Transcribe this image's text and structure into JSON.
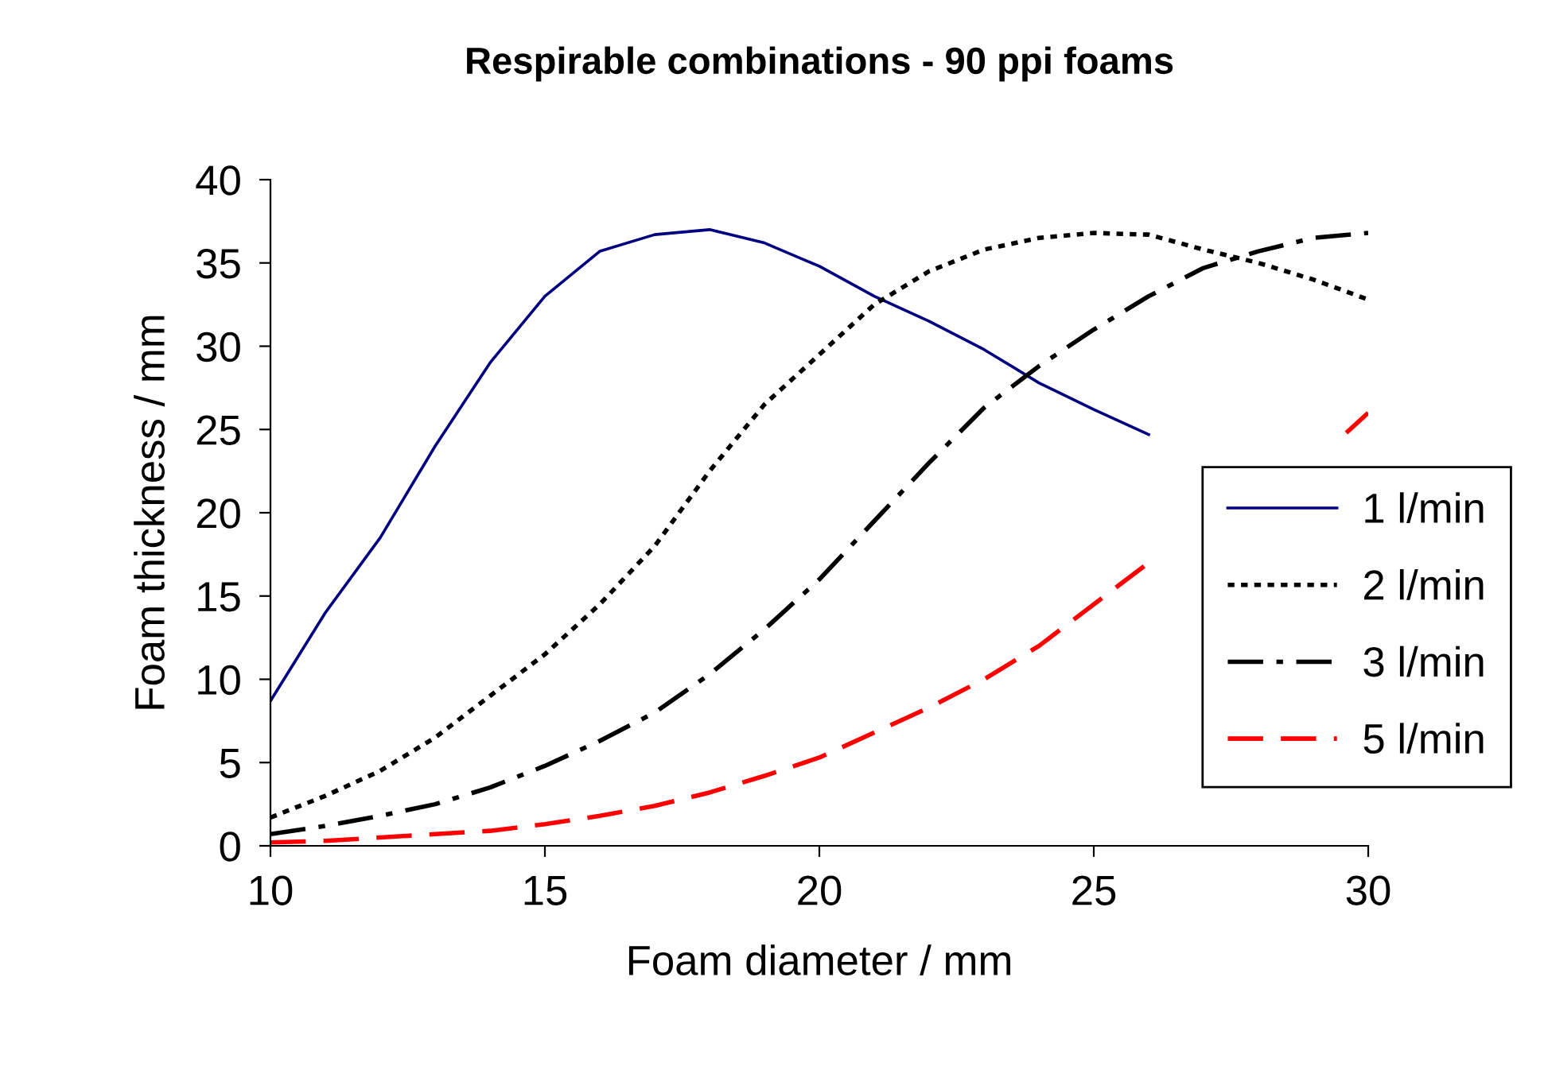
{
  "chart_data": {
    "type": "line",
    "title": "Respirable combinations - 90 ppi foams",
    "xlabel": "Foam diameter / mm",
    "ylabel": "Foam thickness / mm",
    "x": [
      10,
      11,
      12,
      13,
      14,
      15,
      16,
      17,
      18,
      19,
      20,
      21,
      22,
      23,
      24,
      25,
      26,
      27,
      28,
      29,
      30
    ],
    "series": [
      {
        "name": "1 l/min",
        "color": "#000080",
        "line_style": "solid",
        "values": [
          8.7,
          14,
          18.5,
          24,
          29,
          33,
          35.7,
          36.7,
          37,
          36.2,
          34.8,
          33,
          31.5,
          29.8,
          27.8,
          26.2,
          24.7,
          null,
          null,
          null,
          null
        ]
      },
      {
        "name": "2 l/min",
        "color": "#000000",
        "line_style": "dotted",
        "values": [
          1.7,
          3,
          4.5,
          6.5,
          9,
          11.5,
          14.5,
          18,
          22.5,
          26.5,
          29.5,
          32.5,
          34.5,
          35.8,
          36.5,
          36.8,
          36.7,
          35.8,
          35,
          34,
          32.8
        ]
      },
      {
        "name": "3 l/min",
        "color": "#000000",
        "line_style": "dashdot",
        "values": [
          0.7,
          1.2,
          1.8,
          2.5,
          3.5,
          4.8,
          6.3,
          8,
          10.3,
          13,
          16,
          19.5,
          23,
          26.3,
          28.8,
          31,
          33,
          34.7,
          35.7,
          36.5,
          36.8
        ]
      },
      {
        "name": "5 l/min",
        "color": "#ff0000",
        "line_style": "dashed",
        "x": [
          10,
          11,
          12,
          13,
          14,
          15,
          16,
          17,
          18,
          19,
          20,
          21,
          22,
          23,
          24,
          25,
          26,
          27,
          28,
          29,
          29.6,
          30
        ],
        "values": [
          0.2,
          0.3,
          0.5,
          0.7,
          0.9,
          1.3,
          1.8,
          2.4,
          3.2,
          4.2,
          5.3,
          6.8,
          8.3,
          10,
          12,
          14.5,
          17,
          null,
          null,
          null,
          24.8,
          26
        ]
      }
    ],
    "xlim": [
      10,
      30
    ],
    "xticks": [
      10,
      15,
      20,
      25,
      30
    ],
    "ylim": [
      0,
      40
    ],
    "yticks": [
      0,
      5,
      10,
      15,
      20,
      25,
      30,
      35,
      40
    ],
    "grid": false,
    "legend": "right",
    "marker": "none"
  }
}
